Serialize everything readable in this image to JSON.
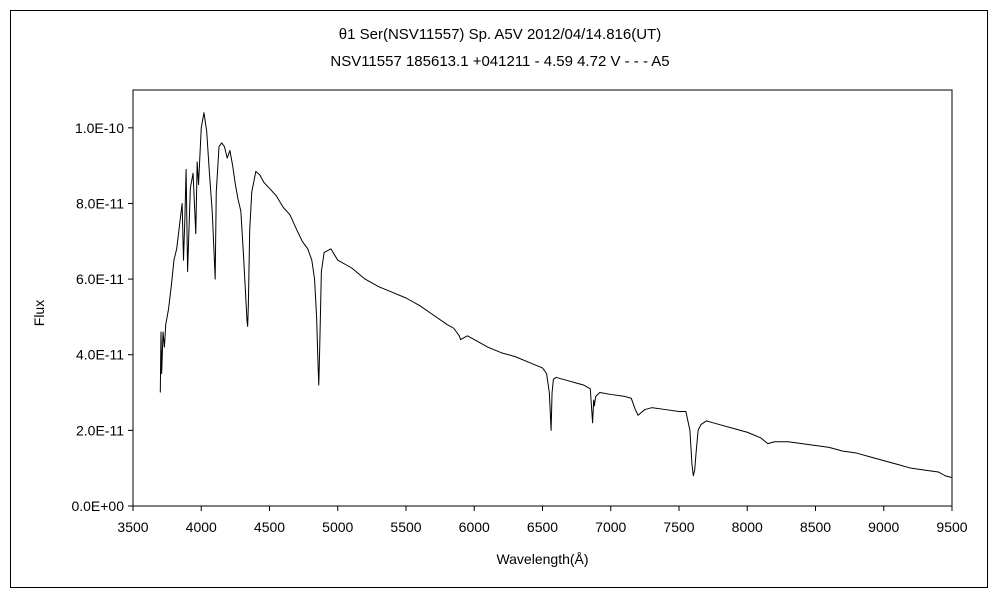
{
  "chart_data": {
    "type": "line",
    "title": "θ1 Ser(NSV11557)    Sp. A5V    2012/04/14.816(UT)",
    "subtitle": "NSV11557 185613.1 +041211 - 4.59 4.72 V - - - A5",
    "xlabel": "Wavelength(Å)",
    "ylabel": "Flux",
    "xlim": [
      3500,
      9500
    ],
    "ylim": [
      0,
      1.1e-10
    ],
    "xticks": [
      3500,
      4000,
      4500,
      5000,
      5500,
      6000,
      6500,
      7000,
      7500,
      8000,
      8500,
      9000,
      9500
    ],
    "xtick_labels": [
      "3500",
      "4000",
      "4500",
      "5000",
      "5500",
      "6000",
      "6500",
      "7000",
      "7500",
      "8000",
      "8500",
      "9000",
      "9500"
    ],
    "yticks": [
      0,
      2e-11,
      4e-11,
      6e-11,
      8e-11,
      1e-10
    ],
    "ytick_labels": [
      "0.0E+00",
      "2.0E-11",
      "4.0E-11",
      "6.0E-11",
      "8.0E-11",
      "1.0E-10"
    ],
    "grid": false,
    "legend": "none",
    "line_color": "#000000",
    "series": [
      {
        "x": [
          3700,
          3705,
          3710,
          3720,
          3730,
          3740,
          3760,
          3780,
          3800,
          3820,
          3840,
          3860,
          3870,
          3880,
          3889,
          3900,
          3920,
          3940,
          3960,
          3970,
          3980,
          4000,
          4020,
          4040,
          4060,
          4080,
          4095,
          4102,
          4110,
          4130,
          4150,
          4170,
          4190,
          4210,
          4230,
          4250,
          4270,
          4290,
          4310,
          4325,
          4335,
          4340,
          4345,
          4355,
          4370,
          4400,
          4430,
          4460,
          4500,
          4550,
          4600,
          4650,
          4700,
          4740,
          4780,
          4810,
          4830,
          4845,
          4855,
          4861,
          4868,
          4880,
          4900,
          4950,
          5000,
          5100,
          5200,
          5300,
          5400,
          5500,
          5600,
          5700,
          5800,
          5850,
          5890,
          5900,
          5950,
          6000,
          6100,
          6200,
          6300,
          6400,
          6500,
          6530,
          6550,
          6563,
          6570,
          6580,
          6600,
          6650,
          6700,
          6750,
          6800,
          6850,
          6867,
          6875,
          6880,
          6890,
          6920,
          7000,
          7100,
          7150,
          7180,
          7200,
          7250,
          7300,
          7400,
          7500,
          7550,
          7580,
          7595,
          7605,
          7615,
          7625,
          7640,
          7660,
          7700,
          7750,
          7800,
          7900,
          8000,
          8100,
          8150,
          8200,
          8300,
          8400,
          8500,
          8600,
          8700,
          8800,
          8900,
          9000,
          9100,
          9200,
          9300,
          9400,
          9450,
          9500
        ],
        "y": [
          3e-11,
          4.6e-11,
          3.5e-11,
          4.6e-11,
          4.2e-11,
          4.8e-11,
          5.2e-11,
          5.8e-11,
          6.5e-11,
          6.8e-11,
          7.4e-11,
          8e-11,
          6.5e-11,
          7.6e-11,
          8.9e-11,
          6.2e-11,
          8.4e-11,
          8.8e-11,
          7.2e-11,
          9.1e-11,
          8.5e-11,
          1e-10,
          1.04e-10,
          9.9e-11,
          8.8e-11,
          7.8e-11,
          6.6e-11,
          6e-11,
          8.3e-11,
          9.5e-11,
          9.6e-11,
          9.5e-11,
          9.2e-11,
          9.4e-11,
          9e-11,
          8.5e-11,
          8.1e-11,
          7.8e-11,
          6.6e-11,
          5.6e-11,
          4.9e-11,
          4.75e-11,
          5.3e-11,
          7.3e-11,
          8.3e-11,
          8.85e-11,
          8.75e-11,
          8.55e-11,
          8.4e-11,
          8.2e-11,
          7.9e-11,
          7.7e-11,
          7.3e-11,
          7e-11,
          6.8e-11,
          6.5e-11,
          6e-11,
          5e-11,
          3.8e-11,
          3.2e-11,
          4.2e-11,
          6.2e-11,
          6.7e-11,
          6.8e-11,
          6.5e-11,
          6.3e-11,
          6e-11,
          5.8e-11,
          5.65e-11,
          5.5e-11,
          5.3e-11,
          5.05e-11,
          4.8e-11,
          4.7e-11,
          4.5e-11,
          4.4e-11,
          4.5e-11,
          4.4e-11,
          4.2e-11,
          4.05e-11,
          3.95e-11,
          3.8e-11,
          3.65e-11,
          3.5e-11,
          3e-11,
          2e-11,
          3e-11,
          3.35e-11,
          3.4e-11,
          3.35e-11,
          3.3e-11,
          3.25e-11,
          3.2e-11,
          3.1e-11,
          2.2e-11,
          2.8e-11,
          2.65e-11,
          2.9e-11,
          3e-11,
          2.95e-11,
          2.9e-11,
          2.85e-11,
          2.55e-11,
          2.4e-11,
          2.55e-11,
          2.6e-11,
          2.55e-11,
          2.5e-11,
          2.5e-11,
          2e-11,
          1.1e-11,
          8e-12,
          9.5e-12,
          1.4e-11,
          2e-11,
          2.15e-11,
          2.25e-11,
          2.2e-11,
          2.15e-11,
          2.05e-11,
          1.95e-11,
          1.8e-11,
          1.65e-11,
          1.7e-11,
          1.7e-11,
          1.65e-11,
          1.6e-11,
          1.55e-11,
          1.45e-11,
          1.4e-11,
          1.3e-11,
          1.2e-11,
          1.1e-11,
          1e-11,
          9.5e-12,
          9e-12,
          8e-12,
          7.5e-12
        ]
      }
    ]
  }
}
